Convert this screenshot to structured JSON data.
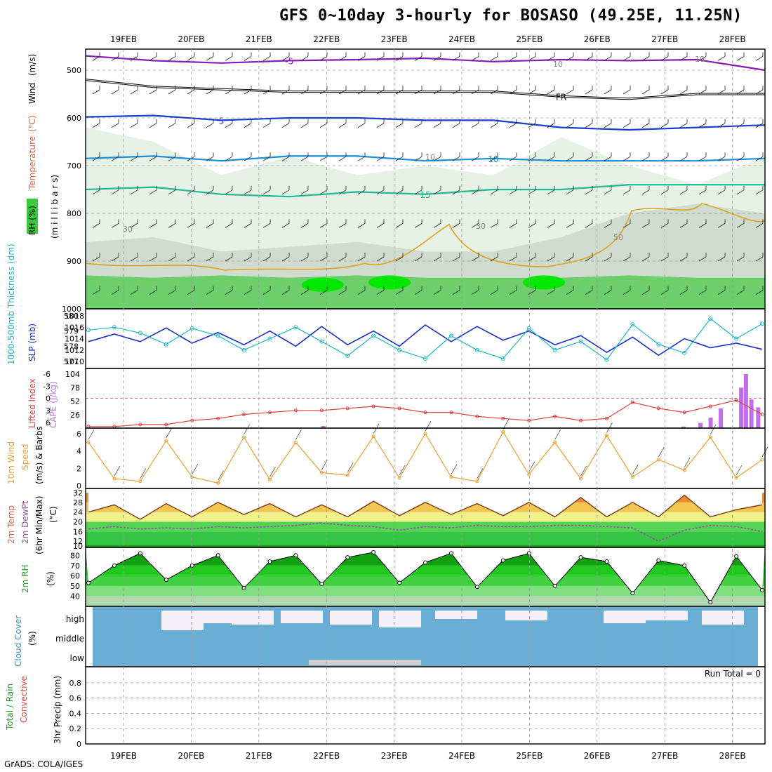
{
  "title": "GFS 0~10day 3-hourly for BOSASO (49.25E, 11.25N)",
  "credit": "GrADS: COLA/IGES",
  "dates": [
    "19FEB",
    "20FEB",
    "21FEB",
    "22FEB",
    "23FEB",
    "24FEB",
    "25FEB",
    "26FEB",
    "27FEB",
    "28FEB"
  ],
  "chart_data": [
    {
      "type": "area",
      "panel": "upper-air cross section",
      "ylabel_parts": [
        "RH (%)",
        "Temperature",
        "(°C)",
        "Wind",
        "(m/s)",
        "(m i l l i b a r s)"
      ],
      "yticks": [
        500,
        600,
        700,
        800,
        900,
        1000
      ],
      "ylim": [
        1000,
        450
      ],
      "temperature_contours": [
        {
          "name": "-5",
          "color": "#8a1ab8",
          "level_mb": [
            470,
            480,
            485,
            480,
            478,
            475,
            482,
            478,
            480,
            478,
            500
          ],
          "label": "-5"
        },
        {
          "name": "FR",
          "color": "#000000",
          "level_mb": [
            520,
            535,
            540,
            545,
            545,
            545,
            545,
            555,
            560,
            550,
            550
          ],
          "label": "FR"
        },
        {
          "name": "-5 (lower)",
          "color": "#1a3ecc",
          "level_mb": [
            598,
            595,
            605,
            600,
            600,
            605,
            605,
            620,
            625,
            620,
            615
          ],
          "label": "5"
        },
        {
          "name": "10",
          "color": "#1a8fd8",
          "level_mb": [
            685,
            680,
            690,
            680,
            680,
            690,
            685,
            690,
            690,
            690,
            685
          ],
          "label": "10"
        },
        {
          "name": "15",
          "color": "#20b890",
          "level_mb": [
            750,
            745,
            760,
            765,
            755,
            760,
            750,
            750,
            740,
            740,
            740
          ],
          "label": "15"
        }
      ],
      "rh_labels": [
        "30",
        "30",
        "50",
        "10",
        "10",
        "10"
      ]
    },
    {
      "type": "line",
      "panel": "thickness and sea level pressure",
      "left_label": "1000-500mb Thickness (dm)",
      "right_label": "SLP (mb)",
      "left_ticks": [
        577,
        578,
        579,
        580
      ],
      "right_ticks": [
        1010,
        1012,
        1014,
        1016,
        1018
      ],
      "series": [
        {
          "name": "1000-500mb Thickness",
          "color": "#1a2fc8",
          "values": [
            578.3,
            578.8,
            578.3,
            579.2,
            578.2,
            578.9,
            578.1,
            579.0,
            578.0,
            579.3,
            578.1,
            579.0,
            578.0,
            579.4,
            578.3,
            579.3,
            578.4,
            579.0,
            578.1,
            578.7,
            577.6,
            578.6,
            577.4,
            578.5,
            577.9,
            578.2,
            577.8
          ]
        },
        {
          "name": "SLP",
          "color": "#1ab8c8",
          "values": [
            1015.5,
            1016,
            1015,
            1013,
            1015.8,
            1014.5,
            1012,
            1014,
            1016,
            1013.5,
            1011,
            1014.5,
            1012,
            1010.5,
            1014.5,
            1012,
            1010.5,
            1015.8,
            1012,
            1013.5,
            1010.3,
            1016.5,
            1013,
            1011.5,
            1017.5,
            1014,
            1016.6
          ]
        }
      ]
    },
    {
      "type": "line",
      "panel": "lifted index and CAPE",
      "left_label": "Lifted Index",
      "right_label": "CAPE (J/kg)",
      "left_ticks": [
        "-6",
        "-3",
        "0",
        "3",
        "6"
      ],
      "right_ticks": [
        26,
        52,
        78,
        104
      ],
      "series": [
        {
          "name": "Lifted Index",
          "color": "#e04040",
          "values": [
            7,
            7,
            6.5,
            6.5,
            5.5,
            5,
            4,
            3.5,
            3,
            3,
            2.5,
            2,
            2.5,
            3.5,
            3.5,
            4.5,
            5,
            5.5,
            4.5,
            5.5,
            5,
            1,
            2.5,
            3.5,
            2,
            0.5,
            4
          ]
        },
        {
          "name": "CAPE",
          "color": "#c070e8",
          "bars": [
            [
              0.35,
              4
            ],
            [
              0.12,
              2
            ],
            [
              0.88,
              3
            ],
            [
              0.905,
              10
            ],
            [
              0.92,
              20
            ],
            [
              0.935,
              38
            ],
            [
              0.965,
              78
            ],
            [
              0.972,
              104
            ],
            [
              0.98,
              55
            ],
            [
              0.99,
              40
            ]
          ]
        }
      ]
    },
    {
      "type": "line",
      "panel": "10m wind",
      "label": "10m Wind Speed (m/s) & Barbs",
      "yticks": [
        0,
        2,
        4,
        6
      ],
      "series": [
        {
          "name": "10m Wind Speed",
          "color": "#e8a030",
          "values": [
            5,
            0.8,
            0.5,
            5.2,
            1,
            0.3,
            5.6,
            0.7,
            5,
            1.5,
            1.2,
            5.7,
            0.9,
            6,
            1,
            0.5,
            6.2,
            1.3,
            5,
            0.8,
            5.8,
            1,
            3,
            1.8,
            5.6,
            0.9,
            3
          ]
        }
      ]
    },
    {
      "type": "area",
      "panel": "2m temperature",
      "label": "2m Temp 2m DewPt (6hr Min/Max) (°C)",
      "yticks": [
        10,
        12,
        16,
        20,
        24,
        28,
        32
      ],
      "series": [
        {
          "name": "2m Temp",
          "color": "#7a3a10",
          "values": [
            24,
            27,
            21,
            27.5,
            22,
            28,
            23,
            27.5,
            22,
            27,
            22,
            28.5,
            22.5,
            28,
            23,
            27.5,
            22.5,
            28,
            22,
            30,
            22,
            28,
            22,
            31,
            22,
            25,
            27
          ]
        },
        {
          "name": "2m DewPt",
          "color": "#9a50b0",
          "values": [
            17,
            18,
            17,
            17.5,
            17,
            18,
            17.5,
            18,
            18.5,
            19.5,
            18.5,
            18,
            16.5,
            18,
            17.5,
            18.5,
            18,
            18,
            18.5,
            18.5,
            18,
            17.5,
            12,
            16.5,
            18.5,
            18,
            16
          ]
        }
      ]
    },
    {
      "type": "area",
      "panel": "2m RH",
      "label": "2m RH (%)",
      "yticks": [
        40,
        50,
        60,
        70,
        80
      ],
      "series": [
        {
          "name": "2m RH",
          "color": "#20c820",
          "values": [
            53,
            70,
            82,
            56,
            70,
            80,
            48,
            74,
            80,
            52,
            78,
            83,
            53,
            73,
            82,
            49,
            75,
            82,
            50,
            78,
            74,
            43,
            75,
            70,
            34,
            79,
            46
          ]
        }
      ]
    },
    {
      "type": "bar",
      "panel": "cloud cover",
      "label": "Cloud Cover (%)",
      "levels": [
        "high",
        "middle",
        "low"
      ]
    },
    {
      "type": "bar",
      "panel": "3hr precip",
      "label": "Total / Rain Convective 3hr Precip (mm)",
      "yticks": [
        0,
        0.2,
        0.4,
        0.6,
        0.8
      ],
      "annotation": "Run Total = 0",
      "values": []
    }
  ]
}
